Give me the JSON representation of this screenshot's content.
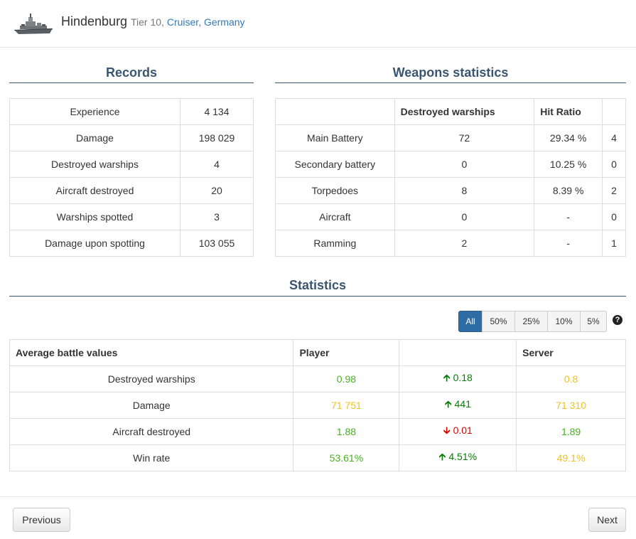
{
  "ship": {
    "name": "Hindenburg",
    "tier": "Tier 10,",
    "class": "Cruiser,",
    "nation": "Germany"
  },
  "records": {
    "title": "Records",
    "rows": [
      {
        "label": "Experience",
        "value": "4 134"
      },
      {
        "label": "Damage",
        "value": "198 029"
      },
      {
        "label": "Destroyed warships",
        "value": "4"
      },
      {
        "label": "Aircraft destroyed",
        "value": "20"
      },
      {
        "label": "Warships spotted",
        "value": "3"
      },
      {
        "label": "Damage upon spotting",
        "value": "103 055"
      }
    ]
  },
  "weapons": {
    "title": "Weapons statistics",
    "headers": [
      "",
      "Destroyed warships",
      "Hit Ratio",
      ""
    ],
    "rows": [
      {
        "name": "Main Battery",
        "destroyed": "72",
        "hit_ratio": "29.34 %",
        "extra": "4"
      },
      {
        "name": "Secondary battery",
        "destroyed": "0",
        "hit_ratio": "10.25 %",
        "extra": "0"
      },
      {
        "name": "Torpedoes",
        "destroyed": "8",
        "hit_ratio": "8.39 %",
        "extra": "2"
      },
      {
        "name": "Aircraft",
        "destroyed": "0",
        "hit_ratio": "-",
        "extra": "0"
      },
      {
        "name": "Ramming",
        "destroyed": "2",
        "hit_ratio": "-",
        "extra": "1"
      }
    ]
  },
  "statistics": {
    "title": "Statistics",
    "filters": [
      "All",
      "50%",
      "25%",
      "10%",
      "5%"
    ],
    "active_filter": "All",
    "headers": [
      "Average battle values",
      "Player",
      "",
      "Server"
    ],
    "rows": [
      {
        "label": "Destroyed warships",
        "player": "0.98",
        "player_color": "green",
        "diff": "0.18",
        "diff_dir": "up",
        "server": "0.8",
        "server_color": "yellow"
      },
      {
        "label": "Damage",
        "player": "71 751",
        "player_color": "yellow",
        "diff": "441",
        "diff_dir": "up",
        "server": "71 310",
        "server_color": "yellow"
      },
      {
        "label": "Aircraft destroyed",
        "player": "1.88",
        "player_color": "green",
        "diff": "0.01",
        "diff_dir": "down",
        "server": "1.89",
        "server_color": "green"
      },
      {
        "label": "Win rate",
        "player": "53.61%",
        "player_color": "green",
        "diff": "4.51%",
        "diff_dir": "up",
        "server": "49.1%",
        "server_color": "yellow"
      }
    ]
  },
  "nav": {
    "previous": "Previous",
    "next": "Next"
  },
  "colors": {
    "title": "#3a5570",
    "link": "#337ab7",
    "good": "#44b21c",
    "average": "#f0c21a",
    "up_arrow": "#0b7a0b",
    "down_arrow": "#d90000",
    "active_filter": "#2e6da4"
  },
  "icons": {
    "ship": "ship-thumbnail-icon",
    "help": "question-circle-icon",
    "up": "arrow-up-icon",
    "down": "arrow-down-icon"
  }
}
